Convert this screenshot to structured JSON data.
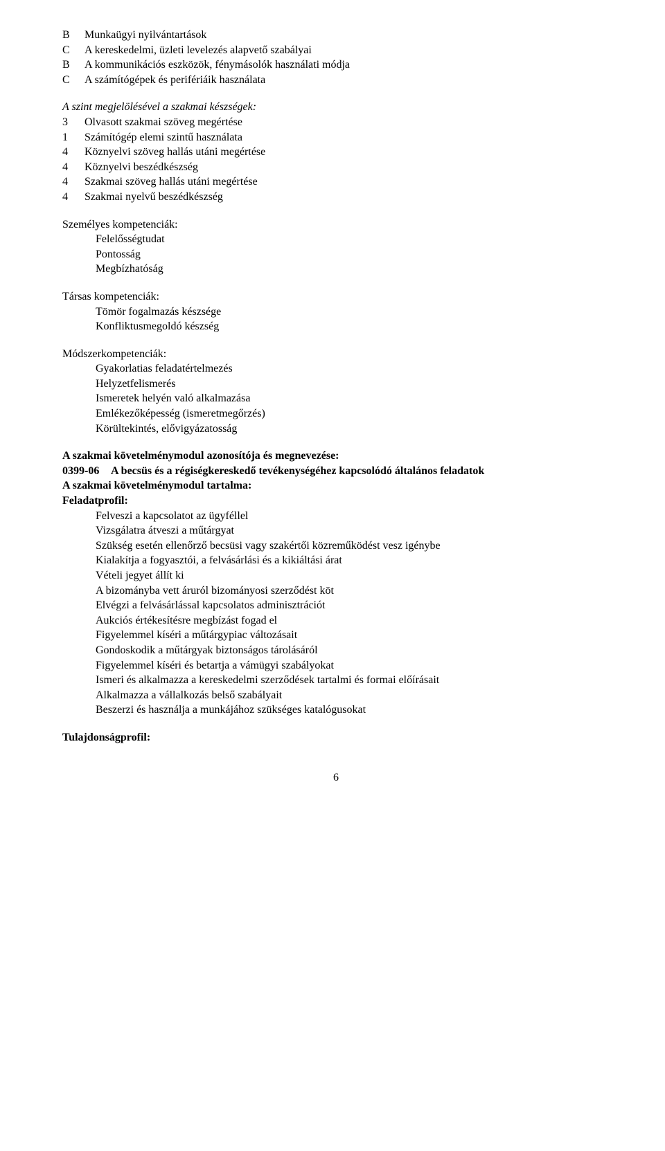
{
  "list1": [
    {
      "marker": "B",
      "text": "Munkaügyi nyilvántartások"
    },
    {
      "marker": "C",
      "text": "A kereskedelmi, üzleti levelezés alapvető szabályai"
    },
    {
      "marker": "B",
      "text": "A kommunikációs eszközök, fénymásolók használati módja"
    },
    {
      "marker": "C",
      "text": "A számítógépek és perifériáik használata"
    }
  ],
  "szintHeader": "A szint megjelölésével a szakmai készségek:",
  "list2": [
    {
      "marker": "3",
      "text": "Olvasott szakmai szöveg megértése"
    },
    {
      "marker": "1",
      "text": "Számítógép elemi szintű használata"
    },
    {
      "marker": "4",
      "text": "Köznyelvi szöveg hallás utáni megértése"
    },
    {
      "marker": "4",
      "text": "Köznyelvi beszédkészség"
    },
    {
      "marker": "4",
      "text": "Szakmai szöveg hallás utáni megértése"
    },
    {
      "marker": "4",
      "text": "Szakmai nyelvű beszédkészség"
    }
  ],
  "personal": {
    "title": "Személyes kompetenciák:",
    "items": [
      "Felelősségtudat",
      "Pontosság",
      "Megbízhatóság"
    ]
  },
  "social": {
    "title": "Társas kompetenciák:",
    "items": [
      "Tömör fogalmazás készsége",
      "Konfliktusmegoldó készség"
    ]
  },
  "method": {
    "title": "Módszerkompetenciák:",
    "items": [
      "Gyakorlatias feladatértelmezés",
      "Helyzetfelismerés",
      "Ismeretek helyén való alkalmazása",
      "Emlékezőképesség (ismeretmegőrzés)",
      "Körültekintés, elővigyázatosság"
    ]
  },
  "modul": {
    "line1": "A szakmai követelménymodul azonosítója és megnevezése:",
    "code": "0399-06",
    "codeTitle": "A becsüs és a régiségkereskedő tevékenységéhez kapcsolódó általános feladatok",
    "line2": "A szakmai követelménymodul tartalma:",
    "feladat": "Feladatprofil:",
    "feladatItems": [
      "Felveszi a kapcsolatot az ügyféllel",
      "Vizsgálatra átveszi a műtárgyat",
      "Szükség esetén ellenőrző becsüsi vagy szakértői közreműködést vesz igénybe",
      "Kialakítja a fogyasztói, a felvásárlási és a kikiáltási árat",
      "Vételi jegyet állít ki",
      "A bizományba vett áruról bizományosi szerződést köt",
      "Elvégzi a felvásárlással kapcsolatos adminisztrációt",
      "Aukciós értékesítésre megbízást fogad el",
      "Figyelemmel kíséri a műtárgypiac változásait",
      "Gondoskodik a műtárgyak biztonságos tárolásáról",
      "Figyelemmel kíséri és betartja a vámügyi szabályokat",
      "Ismeri és alkalmazza a kereskedelmi szerződések tartalmi és formai előírásait",
      "Alkalmazza a vállalkozás belső szabályait",
      "Beszerzi és használja a munkájához szükséges katalógusokat"
    ],
    "tulajdonsag": "Tulajdonságprofil:"
  },
  "pageNum": "6"
}
